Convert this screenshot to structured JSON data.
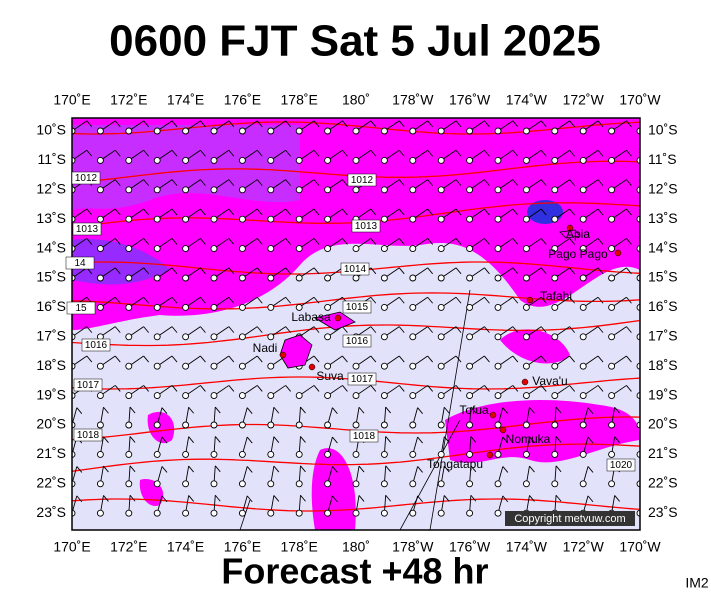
{
  "title": "0600 FJT Sat 5 Jul 2025",
  "longitudes": [
    "170˚E",
    "172˚E",
    "174˚E",
    "176˚E",
    "178˚E",
    "180˚",
    "178˚W",
    "176˚W",
    "174˚W",
    "172˚W",
    "170˚W"
  ],
  "latitudes": [
    "10˚S",
    "11˚S",
    "12˚S",
    "13˚S",
    "14˚S",
    "15˚S",
    "16˚S",
    "17˚S",
    "18˚S",
    "19˚S",
    "20˚S",
    "21˚S",
    "22˚S",
    "23˚S"
  ],
  "isobar_labels": [
    "1012",
    "1012",
    "1013",
    "1013",
    "14",
    "1014",
    "15",
    "1015",
    "1016",
    "1016",
    "1017",
    "1017",
    "1018",
    "1018",
    "1020"
  ],
  "places": [
    "Apia",
    "Pago Pago",
    "Tafahi",
    "Labasa",
    "Nadi",
    "Suva",
    "Vava'u",
    "Tofua",
    "Nomuka",
    "Tongatapu"
  ],
  "footer": "Forecast +48 hr",
  "copyright": "Copyright metvuw.com",
  "code": "IM2"
}
